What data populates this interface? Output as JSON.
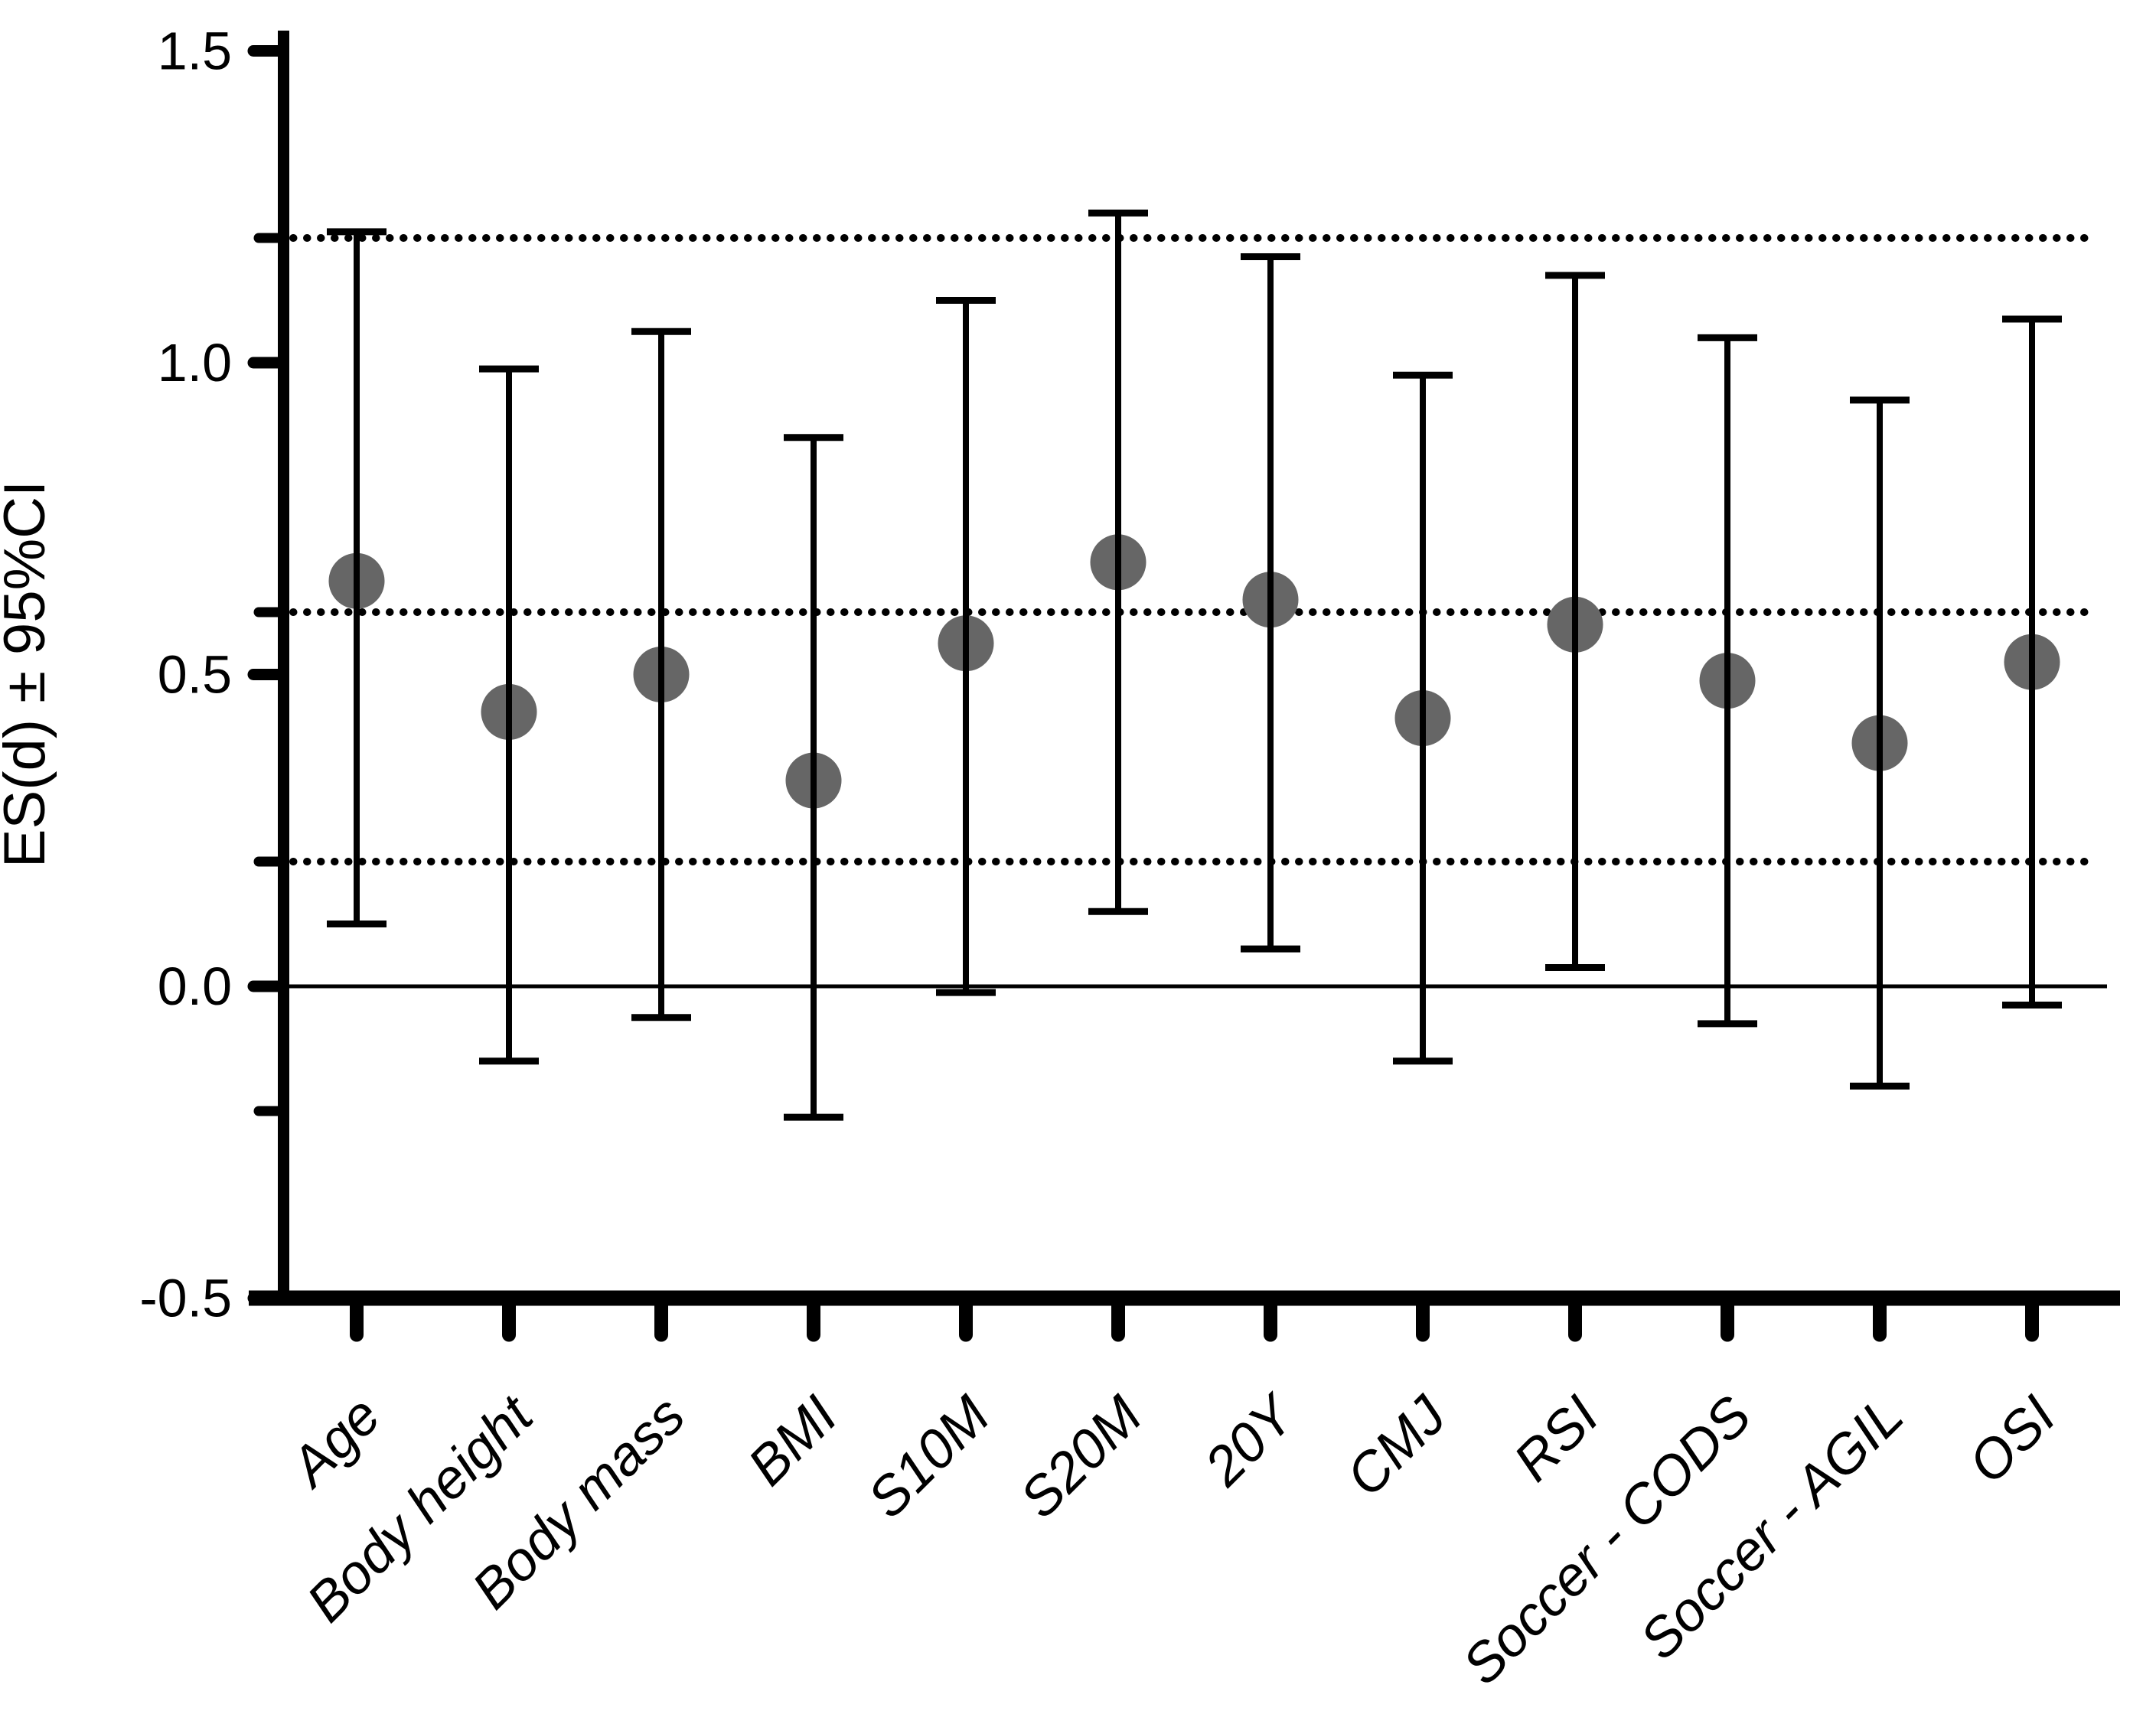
{
  "chart_data": {
    "type": "scatter",
    "subtype": "point-estimate-with-error-bars",
    "title": "",
    "xlabel": "",
    "ylabel": "ES(d) ± 95%CI",
    "ylim": [
      -0.5,
      1.5
    ],
    "grid": "off",
    "legend_position": "none",
    "y_major_tick_values": [
      1.5,
      1.0,
      0.5,
      0.0,
      -0.5
    ],
    "y_major_tick_labels": [
      "1.5",
      "1.0",
      "0.5",
      "0.0",
      "-0.5"
    ],
    "y_threshold_tick_values": [
      1.2,
      0.6,
      0.2,
      -0.2
    ],
    "dotted_reference_lines": [
      1.2,
      0.6,
      0.2
    ],
    "solid_reference_line": 0.0,
    "categories": [
      "Age",
      "Body height",
      "Body mass",
      "BMI",
      "S10M",
      "S20M",
      "20Y",
      "CMJ",
      "RSI",
      "Soccer - CODS",
      "Soccer - AGIL",
      "OSI"
    ],
    "series": [
      {
        "name": "ES(d)",
        "values": [
          0.65,
          0.44,
          0.5,
          0.33,
          0.55,
          0.68,
          0.62,
          0.43,
          0.58,
          0.49,
          0.39,
          0.52
        ],
        "ci_upper": [
          1.21,
          0.99,
          1.05,
          0.88,
          1.1,
          1.24,
          1.17,
          0.98,
          1.14,
          1.04,
          0.94,
          1.07
        ],
        "ci_lower": [
          0.1,
          -0.12,
          -0.05,
          -0.21,
          -0.01,
          0.12,
          0.06,
          -0.12,
          0.03,
          -0.06,
          -0.16,
          -0.03
        ]
      }
    ],
    "marker_color": "#666666",
    "axis_color": "#000000",
    "background_color": "#ffffff"
  }
}
